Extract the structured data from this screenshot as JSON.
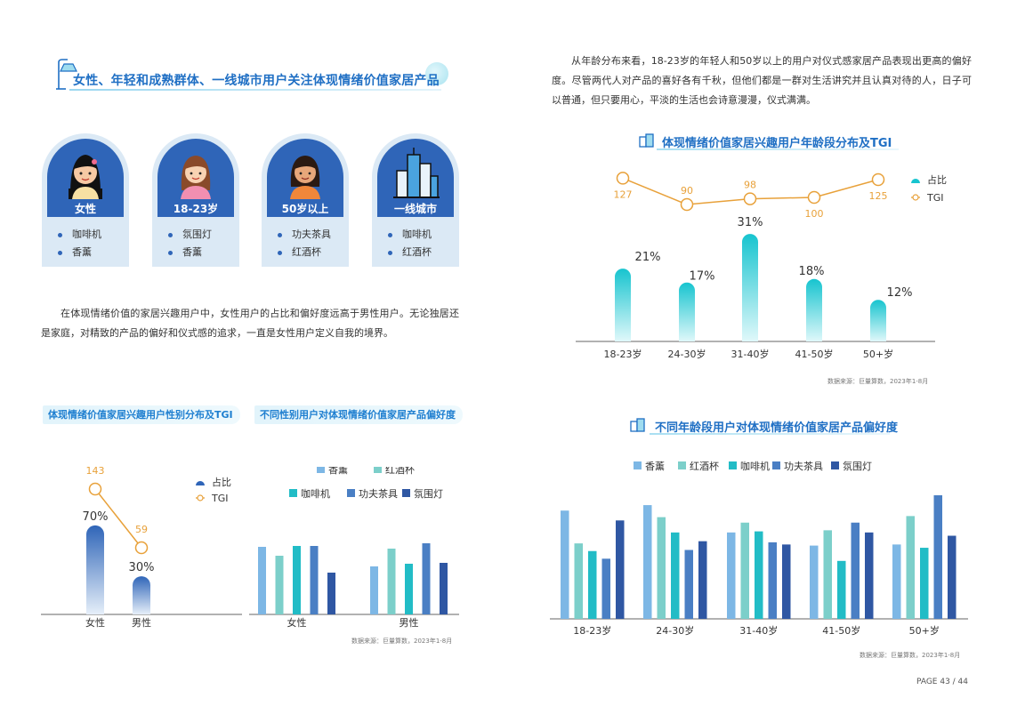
{
  "left": {
    "section_title": "女性、年轻和成熟群体、一线城市用户关注体现情绪价值家居产品",
    "personas": [
      {
        "name": "女性",
        "items": [
          "咖啡机",
          "香薰"
        ]
      },
      {
        "name": "18-23岁",
        "items": [
          "氛围灯",
          "香薰"
        ]
      },
      {
        "name": "50岁以上",
        "items": [
          "功夫茶具",
          "红酒杯"
        ]
      },
      {
        "name": "一线城市",
        "items": [
          "咖啡机",
          "红酒杯"
        ]
      }
    ],
    "paragraph": "在体现情绪价值的家居兴趣用户中，女性用户的占比和偏好度远高于男性用户。无论独居还是家庭，对精致的产品的偏好和仪式感的追求，一直是女性用户定义自我的境界。",
    "chart1_title": "体现情绪价值家居兴趣用户性别分布及TGI",
    "chart2_title": "不同性别用户对体现情绪价值家居产品偏好度",
    "source": "数据来源：巨量算数，2023年1-8月"
  },
  "right": {
    "paragraph": "从年龄分布来看，18-23岁的年轻人和50岁以上的用户对仪式感家居产品表现出更高的偏好度。尽管两代人对产品的喜好各有千秋，但他们都是一群对生活讲究并且认真对待的人，日子可以普通，但只要用心，平淡的生活也会诗意漫漫，仪式满满。",
    "chart3_title": "体现情绪价值家居兴趣用户年龄段分布及TGI",
    "chart4_title": "不同年龄段用户对体现情绪价值家居产品偏好度",
    "source": "数据来源：巨量算数，2023年1-8月"
  },
  "page_number": "PAGE 43 / 44",
  "colors": {
    "accent": "#1f6fc4",
    "tgi": "#e8a13a",
    "product_series": [
      "#7db7e5",
      "#7ccfca",
      "#22bcc6",
      "#4a7fc4",
      "#2f57a3"
    ]
  },
  "chart_data": [
    {
      "type": "bar",
      "categories": [
        "女性",
        "男性"
      ],
      "series": [
        {
          "name": "占比",
          "values": [
            70,
            30
          ],
          "labels": [
            "70%",
            "30%"
          ]
        },
        {
          "name": "TGI",
          "values": [
            143,
            59
          ]
        }
      ],
      "legend": "top-right"
    },
    {
      "type": "bar",
      "categories": [
        "女性",
        "男性"
      ],
      "series": [
        {
          "name": "香薰",
          "values": [
            76,
            54
          ]
        },
        {
          "name": "红酒杯",
          "values": [
            66,
            74
          ]
        },
        {
          "name": "咖啡机",
          "values": [
            77,
            57
          ]
        },
        {
          "name": "功夫茶具",
          "values": [
            77,
            80
          ]
        },
        {
          "name": "氛围灯",
          "values": [
            47,
            58
          ]
        }
      ],
      "legend": "top"
    },
    {
      "type": "bar",
      "categories": [
        "18-23岁",
        "24-30岁",
        "31-40岁",
        "41-50岁",
        "50+岁"
      ],
      "series": [
        {
          "name": "占比",
          "values": [
            21,
            17,
            31,
            18,
            12
          ],
          "labels": [
            "21%",
            "17%",
            "31%",
            "18%",
            "12%"
          ]
        },
        {
          "name": "TGI",
          "values": [
            127,
            90,
            98,
            100,
            125
          ]
        }
      ],
      "legend": "top-right"
    },
    {
      "type": "bar",
      "categories": [
        "18-23岁",
        "24-30岁",
        "31-40岁",
        "41-50岁",
        "50+岁"
      ],
      "series": [
        {
          "name": "香薰",
          "values": [
            99,
            104,
            79,
            67,
            68
          ]
        },
        {
          "name": "红酒杯",
          "values": [
            69,
            93,
            88,
            81,
            94
          ]
        },
        {
          "name": "咖啡机",
          "values": [
            62,
            79,
            80,
            53,
            65
          ]
        },
        {
          "name": "功夫茶具",
          "values": [
            55,
            63,
            70,
            88,
            113
          ]
        },
        {
          "name": "氛围灯",
          "values": [
            90,
            71,
            68,
            79,
            76
          ]
        }
      ],
      "legend": "top"
    }
  ]
}
